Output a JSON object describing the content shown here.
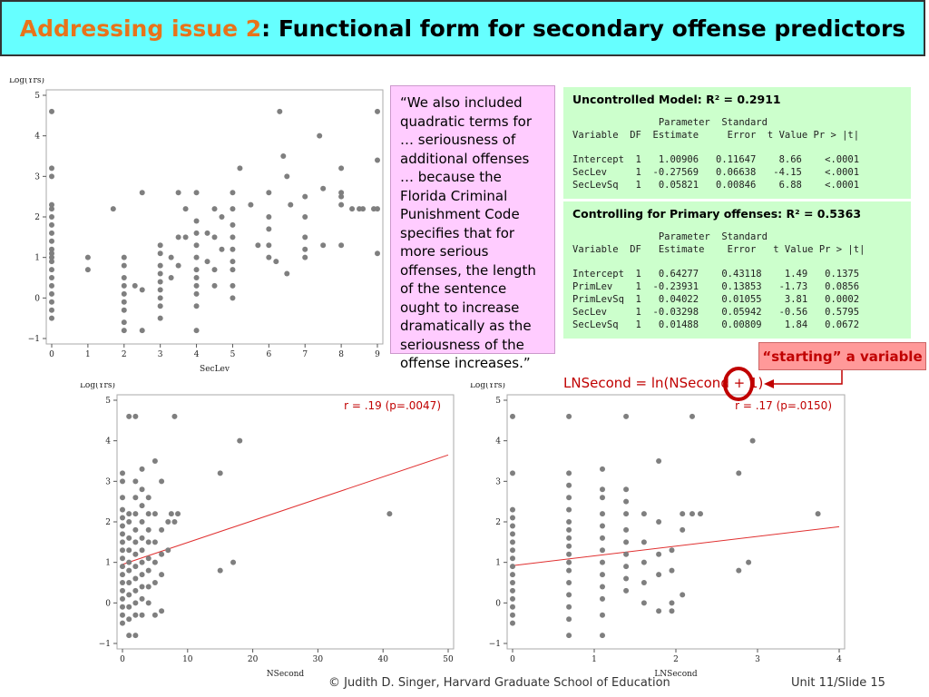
{
  "title": {
    "accent": "Addressing issue 2",
    "main": ": Functional form for secondary offense predictors"
  },
  "quote": "“We also included quadratic terms for … seriousness of additional offenses … because the Florida Criminal Punishment Code specifies that for more serious offenses, the length of the sentence ought to increase dramatically as the seriousness of the offense increases.”",
  "model1": {
    "title": "Uncontrolled Model: R² =  0.2911",
    "table": "               Parameter  Standard\nVariable  DF  Estimate     Error  t Value Pr > |t|\n\nIntercept  1   1.00906   0.11647    8.66    <.0001\nSecLev     1  -0.27569   0.06638   -4.15    <.0001\nSecLevSq   1   0.05821   0.00846    6.88    <.0001"
  },
  "model2": {
    "title": "Controlling for Primary offenses: R² =  0.5363",
    "table": "               Parameter  Standard\nVariable  DF   Estimate    Error   t Value Pr > |t|\n\nIntercept  1   0.64277    0.43118    1.49   0.1375\nPrimLev    1  -0.23931    0.13853   -1.73   0.0856\nPrimLevSq  1   0.04022    0.01055    3.81   0.0002\nSecLev     1  -0.03298    0.05942   -0.56   0.5795\nSecLevSq   1   0.01488    0.00809    1.84   0.0672"
  },
  "callout": "“starting” a variable",
  "formula": "LNSecond = ln(NSecond + 1)",
  "footer": "© Judith D. Singer, Harvard Graduate School of Education",
  "slide_number": "Unit 11/Slide 15",
  "colors": {
    "points": "#7f7f7f",
    "fit_line": "#e03030",
    "annotation": "#c00000",
    "title_bg": "#66ffff",
    "quote_bg": "#ffccff",
    "model_bg": "#ccffcc",
    "callout_bg": "#ff9999"
  },
  "chart_data": [
    {
      "type": "scatter",
      "xlabel": "SecLev",
      "ylabel": "Log(Yrs)",
      "xlim": [
        0,
        9
      ],
      "ylim": [
        -1,
        5
      ],
      "xticks": [
        0,
        1,
        2,
        3,
        4,
        5,
        6,
        7,
        8,
        9
      ],
      "yticks": [
        -1,
        0,
        1,
        2,
        3,
        4,
        5
      ],
      "grid": false,
      "points": [
        [
          0,
          4.6
        ],
        [
          0,
          3.2
        ],
        [
          0,
          3.0
        ],
        [
          0,
          2.3
        ],
        [
          0,
          2.2
        ],
        [
          0,
          2.0
        ],
        [
          0,
          1.8
        ],
        [
          0,
          1.6
        ],
        [
          0,
          1.4
        ],
        [
          0,
          1.2
        ],
        [
          0,
          1.1
        ],
        [
          0,
          1.0
        ],
        [
          0,
          0.9
        ],
        [
          0,
          0.7
        ],
        [
          0,
          0.5
        ],
        [
          0,
          0.3
        ],
        [
          0,
          0.1
        ],
        [
          0,
          -0.1
        ],
        [
          0,
          -0.3
        ],
        [
          0,
          -0.5
        ],
        [
          1,
          1.0
        ],
        [
          1,
          0.7
        ],
        [
          1.7,
          2.2
        ],
        [
          2,
          1.0
        ],
        [
          2,
          0.8
        ],
        [
          2,
          0.5
        ],
        [
          2,
          0.3
        ],
        [
          2,
          0.1
        ],
        [
          2,
          -0.1
        ],
        [
          2,
          -0.3
        ],
        [
          2,
          -0.6
        ],
        [
          2,
          -0.8
        ],
        [
          2.3,
          0.3
        ],
        [
          2.5,
          2.6
        ],
        [
          2.5,
          0.2
        ],
        [
          2.5,
          -0.8
        ],
        [
          3,
          1.1
        ],
        [
          3,
          0.8
        ],
        [
          3,
          0.6
        ],
        [
          3,
          0.4
        ],
        [
          3,
          0.2
        ],
        [
          3,
          0
        ],
        [
          3,
          -0.2
        ],
        [
          3,
          -0.5
        ],
        [
          3,
          1.3
        ],
        [
          3.3,
          1.0
        ],
        [
          3.3,
          0.5
        ],
        [
          3.5,
          2.6
        ],
        [
          3.5,
          1.5
        ],
        [
          3.5,
          0.8
        ],
        [
          3.7,
          1.5
        ],
        [
          3.7,
          2.2
        ],
        [
          4,
          1.9
        ],
        [
          4,
          1.6
        ],
        [
          4,
          1.3
        ],
        [
          4,
          1.0
        ],
        [
          4,
          0.7
        ],
        [
          4,
          0.5
        ],
        [
          4,
          0.3
        ],
        [
          4,
          0.1
        ],
        [
          4,
          -0.2
        ],
        [
          4,
          -0.8
        ],
        [
          4,
          2.6
        ],
        [
          4.3,
          1.6
        ],
        [
          4.3,
          0.9
        ],
        [
          4.5,
          2.2
        ],
        [
          4.5,
          1.5
        ],
        [
          4.5,
          0.7
        ],
        [
          4.5,
          0.3
        ],
        [
          4.7,
          2.0
        ],
        [
          4.7,
          1.2
        ],
        [
          5,
          2.2
        ],
        [
          5,
          1.8
        ],
        [
          5,
          1.5
        ],
        [
          5,
          1.2
        ],
        [
          5,
          0.9
        ],
        [
          5,
          0.7
        ],
        [
          5,
          0.3
        ],
        [
          5,
          0
        ],
        [
          5,
          2.6
        ],
        [
          5.2,
          3.2
        ],
        [
          5.5,
          2.3
        ],
        [
          5.7,
          1.3
        ],
        [
          6,
          2.6
        ],
        [
          6,
          2.0
        ],
        [
          6,
          1.7
        ],
        [
          6,
          1.3
        ],
        [
          6,
          1.0
        ],
        [
          6.3,
          4.6
        ],
        [
          6.4,
          3.5
        ],
        [
          6.5,
          3.0
        ],
        [
          6.5,
          0.6
        ],
        [
          6.6,
          2.3
        ],
        [
          6.2,
          0.9
        ],
        [
          7,
          1.5
        ],
        [
          7,
          1.2
        ],
        [
          7,
          1.0
        ],
        [
          7,
          2.5
        ],
        [
          7,
          2.0
        ],
        [
          7.4,
          4.0
        ],
        [
          7.5,
          2.7
        ],
        [
          7.5,
          1.3
        ],
        [
          8,
          3.2
        ],
        [
          8,
          2.6
        ],
        [
          8,
          2.5
        ],
        [
          8,
          2.3
        ],
        [
          8,
          1.3
        ],
        [
          8.3,
          2.2
        ],
        [
          8.5,
          2.2
        ],
        [
          8.6,
          2.2
        ],
        [
          8.9,
          2.2
        ],
        [
          9,
          4.6
        ],
        [
          9,
          3.4
        ],
        [
          9,
          2.2
        ],
        [
          9,
          1.1
        ]
      ]
    },
    {
      "type": "scatter",
      "xlabel": "NSecond",
      "ylabel": "Log(Yrs)",
      "xlim": [
        0,
        50
      ],
      "ylim": [
        -1,
        5
      ],
      "xticks": [
        0,
        10,
        20,
        30,
        40,
        50
      ],
      "yticks": [
        -1,
        0,
        1,
        2,
        3,
        4,
        5
      ],
      "grid": false,
      "annotation": "r = .19 (p=.0047)",
      "fit_line": {
        "x": [
          0,
          50
        ],
        "y": [
          0.95,
          3.65
        ]
      },
      "points": [
        [
          0,
          3.2
        ],
        [
          0,
          3.0
        ],
        [
          0,
          2.6
        ],
        [
          0,
          2.3
        ],
        [
          0,
          2.1
        ],
        [
          0,
          1.9
        ],
        [
          0,
          1.7
        ],
        [
          0,
          1.5
        ],
        [
          0,
          1.3
        ],
        [
          0,
          1.1
        ],
        [
          0,
          0.9
        ],
        [
          0,
          0.7
        ],
        [
          0,
          0.5
        ],
        [
          0,
          0.3
        ],
        [
          0,
          0.1
        ],
        [
          0,
          -0.1
        ],
        [
          0,
          -0.3
        ],
        [
          0,
          -0.5
        ],
        [
          1,
          4.6
        ],
        [
          1,
          2.2
        ],
        [
          1,
          2.0
        ],
        [
          1,
          1.6
        ],
        [
          1,
          1.3
        ],
        [
          1,
          1.0
        ],
        [
          1,
          0.8
        ],
        [
          1,
          0.5
        ],
        [
          1,
          0.2
        ],
        [
          1,
          -0.1
        ],
        [
          1,
          -0.4
        ],
        [
          1,
          -0.8
        ],
        [
          2,
          4.6
        ],
        [
          2,
          3.0
        ],
        [
          2,
          2.6
        ],
        [
          2,
          2.2
        ],
        [
          2,
          1.8
        ],
        [
          2,
          1.5
        ],
        [
          2,
          1.2
        ],
        [
          2,
          0.9
        ],
        [
          2,
          0.6
        ],
        [
          2,
          0.3
        ],
        [
          2,
          0
        ],
        [
          2,
          -0.3
        ],
        [
          2,
          -0.8
        ],
        [
          3,
          3.3
        ],
        [
          3,
          2.8
        ],
        [
          3,
          2.4
        ],
        [
          3,
          2.0
        ],
        [
          3,
          1.6
        ],
        [
          3,
          1.3
        ],
        [
          3,
          1.0
        ],
        [
          3,
          0.7
        ],
        [
          3,
          0.4
        ],
        [
          3,
          0.1
        ],
        [
          3,
          -0.3
        ],
        [
          4,
          2.6
        ],
        [
          4,
          2.2
        ],
        [
          4,
          1.8
        ],
        [
          4,
          1.5
        ],
        [
          4,
          1.1
        ],
        [
          4,
          0.8
        ],
        [
          4,
          0.4
        ],
        [
          4,
          0
        ],
        [
          5,
          3.5
        ],
        [
          5,
          2.2
        ],
        [
          5,
          1.5
        ],
        [
          5,
          1.0
        ],
        [
          5,
          0.5
        ],
        [
          5,
          -0.3
        ],
        [
          6,
          3.0
        ],
        [
          6,
          1.8
        ],
        [
          6,
          1.2
        ],
        [
          6,
          0.7
        ],
        [
          6,
          -0.2
        ],
        [
          7,
          2.0
        ],
        [
          7,
          1.3
        ],
        [
          7.5,
          2.2
        ],
        [
          8,
          4.6
        ],
        [
          8,
          2.0
        ],
        [
          8.5,
          2.2
        ],
        [
          15,
          3.2
        ],
        [
          15,
          0.8
        ],
        [
          17,
          1.0
        ],
        [
          18,
          4.0
        ],
        [
          41,
          2.2
        ]
      ]
    },
    {
      "type": "scatter",
      "xlabel": "LNSecond",
      "ylabel": "Log(Yrs)",
      "xlim": [
        0,
        4
      ],
      "ylim": [
        -1,
        5
      ],
      "xticks": [
        0,
        1,
        2,
        3,
        4
      ],
      "yticks": [
        -1,
        0,
        1,
        2,
        3,
        4,
        5
      ],
      "grid": false,
      "annotation": "r = .17 (p=.0150)",
      "fit_line": {
        "x": [
          0,
          4
        ],
        "y": [
          0.92,
          1.88
        ]
      },
      "points": [
        [
          0,
          4.6
        ],
        [
          0,
          3.2
        ],
        [
          0,
          2.3
        ],
        [
          0,
          2.1
        ],
        [
          0,
          1.9
        ],
        [
          0,
          1.7
        ],
        [
          0,
          1.5
        ],
        [
          0,
          1.3
        ],
        [
          0,
          1.1
        ],
        [
          0,
          0.9
        ],
        [
          0,
          0.7
        ],
        [
          0,
          0.5
        ],
        [
          0,
          0.3
        ],
        [
          0,
          0.1
        ],
        [
          0,
          -0.1
        ],
        [
          0,
          -0.3
        ],
        [
          0,
          -0.5
        ],
        [
          0.69,
          4.6
        ],
        [
          0.69,
          3.2
        ],
        [
          0.69,
          2.9
        ],
        [
          0.69,
          2.6
        ],
        [
          0.69,
          2.3
        ],
        [
          0.69,
          2.0
        ],
        [
          0.69,
          1.8
        ],
        [
          0.69,
          1.6
        ],
        [
          0.69,
          1.4
        ],
        [
          0.69,
          1.2
        ],
        [
          0.69,
          1.0
        ],
        [
          0.69,
          0.8
        ],
        [
          0.69,
          0.5
        ],
        [
          0.69,
          0.2
        ],
        [
          0.69,
          -0.1
        ],
        [
          0.69,
          -0.4
        ],
        [
          0.69,
          -0.8
        ],
        [
          1.1,
          3.3
        ],
        [
          1.1,
          2.8
        ],
        [
          1.1,
          2.6
        ],
        [
          1.1,
          2.2
        ],
        [
          1.1,
          1.9
        ],
        [
          1.1,
          1.6
        ],
        [
          1.1,
          1.3
        ],
        [
          1.1,
          1.0
        ],
        [
          1.1,
          0.7
        ],
        [
          1.1,
          0.4
        ],
        [
          1.1,
          0.1
        ],
        [
          1.1,
          -0.3
        ],
        [
          1.1,
          -0.8
        ],
        [
          1.39,
          4.6
        ],
        [
          1.39,
          2.8
        ],
        [
          1.39,
          2.5
        ],
        [
          1.39,
          2.2
        ],
        [
          1.39,
          1.8
        ],
        [
          1.39,
          1.5
        ],
        [
          1.39,
          1.2
        ],
        [
          1.39,
          0.9
        ],
        [
          1.39,
          0.6
        ],
        [
          1.39,
          0.3
        ],
        [
          1.61,
          2.2
        ],
        [
          1.61,
          1.5
        ],
        [
          1.61,
          1.0
        ],
        [
          1.61,
          0.5
        ],
        [
          1.61,
          0
        ],
        [
          1.79,
          3.5
        ],
        [
          1.79,
          2.0
        ],
        [
          1.79,
          1.2
        ],
        [
          1.79,
          0.7
        ],
        [
          1.79,
          -0.2
        ],
        [
          1.95,
          1.3
        ],
        [
          1.95,
          0.8
        ],
        [
          1.95,
          0
        ],
        [
          1.95,
          -0.2
        ],
        [
          2.08,
          2.2
        ],
        [
          2.08,
          1.8
        ],
        [
          2.08,
          0.2
        ],
        [
          2.2,
          4.6
        ],
        [
          2.2,
          2.2
        ],
        [
          2.3,
          2.2
        ],
        [
          2.77,
          3.2
        ],
        [
          2.77,
          0.8
        ],
        [
          2.89,
          1.0
        ],
        [
          2.94,
          4.0
        ],
        [
          3.74,
          2.2
        ]
      ]
    }
  ]
}
